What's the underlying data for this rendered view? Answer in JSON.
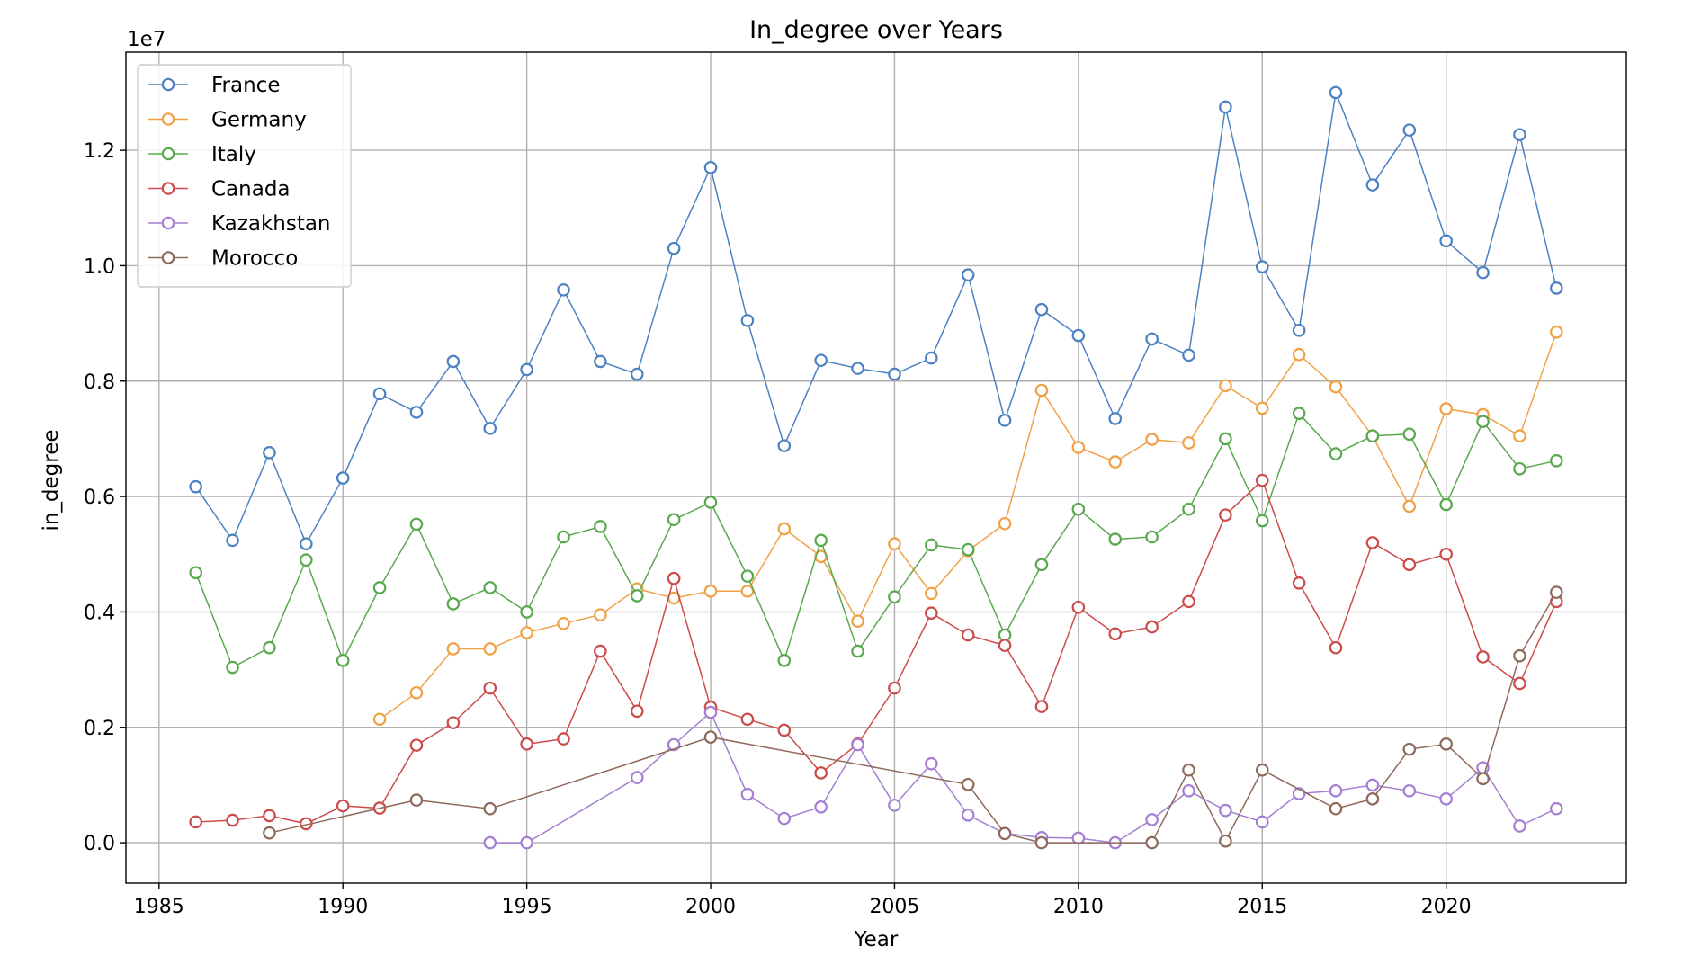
{
  "chart_data": {
    "type": "line",
    "title": "In_degree over Years",
    "xlabel": "Year",
    "ylabel": "in_degree",
    "y_multiplier_label": "1e7",
    "y_scale_factor": 10000000,
    "xlim": [
      1984.1,
      2024.9
    ],
    "ylim": [
      -0.07,
      1.37
    ],
    "x_ticks": [
      1985,
      1990,
      1995,
      2000,
      2005,
      2010,
      2015,
      2020
    ],
    "y_ticks": [
      0.0,
      0.2,
      0.4,
      0.6,
      0.8,
      1.0,
      1.2
    ],
    "y_tick_labels": [
      "0.0",
      "0.2",
      "0.4",
      "0.6",
      "0.8",
      "1.0",
      "1.2"
    ],
    "grid": true,
    "legend_position": "top-left",
    "series": [
      {
        "name": "France",
        "color": "#4c82c2",
        "x": [
          1986,
          1987,
          1988,
          1989,
          1990,
          1991,
          1992,
          1993,
          1994,
          1995,
          1996,
          1997,
          1998,
          1999,
          2000,
          2001,
          2002,
          2003,
          2004,
          2005,
          2006,
          2007,
          2008,
          2009,
          2010,
          2011,
          2012,
          2013,
          2014,
          2015,
          2016,
          2017,
          2018,
          2019,
          2020,
          2021,
          2022,
          2023
        ],
        "values": [
          0.617,
          0.524,
          0.676,
          0.518,
          0.632,
          0.778,
          0.746,
          0.834,
          0.718,
          0.82,
          0.958,
          0.834,
          0.812,
          1.03,
          1.17,
          0.905,
          0.688,
          0.836,
          0.822,
          0.812,
          0.84,
          0.984,
          0.732,
          0.924,
          0.879,
          0.735,
          0.873,
          0.845,
          1.275,
          0.998,
          0.888,
          1.3,
          1.14,
          1.235,
          1.043,
          0.988,
          1.227,
          0.961
        ]
      },
      {
        "name": "Germany",
        "color": "#f0a146",
        "x": [
          1991,
          1992,
          1993,
          1994,
          1995,
          1996,
          1997,
          1998,
          1999,
          2000,
          2001,
          2002,
          2003,
          2004,
          2005,
          2006,
          2007,
          2008,
          2009,
          2010,
          2011,
          2012,
          2013,
          2014,
          2015,
          2016,
          2017,
          2018,
          2019,
          2020,
          2021,
          2022,
          2023
        ],
        "values": [
          0.214,
          0.26,
          0.336,
          0.336,
          0.364,
          0.38,
          0.395,
          0.44,
          0.424,
          0.436,
          0.436,
          0.544,
          0.496,
          0.384,
          0.518,
          0.432,
          0.506,
          0.553,
          0.784,
          0.685,
          0.66,
          0.699,
          0.693,
          0.792,
          0.753,
          0.846,
          0.79,
          0.705,
          0.583,
          0.752,
          0.742,
          0.705,
          0.885
        ]
      },
      {
        "name": "Italy",
        "color": "#5aa84f",
        "x": [
          1986,
          1987,
          1988,
          1989,
          1990,
          1991,
          1992,
          1993,
          1994,
          1995,
          1996,
          1997,
          1998,
          1999,
          2000,
          2001,
          2002,
          2003,
          2004,
          2005,
          2006,
          2007,
          2008,
          2009,
          2010,
          2011,
          2012,
          2013,
          2014,
          2015,
          2016,
          2017,
          2018,
          2019,
          2020,
          2021,
          2022,
          2023
        ],
        "values": [
          0.468,
          0.304,
          0.338,
          0.49,
          0.316,
          0.442,
          0.552,
          0.414,
          0.442,
          0.4,
          0.53,
          0.548,
          0.428,
          0.56,
          0.59,
          0.462,
          0.316,
          0.524,
          0.332,
          0.426,
          0.516,
          0.508,
          0.36,
          0.482,
          0.578,
          0.526,
          0.53,
          0.578,
          0.7,
          0.558,
          0.744,
          0.674,
          0.705,
          0.708,
          0.586,
          0.73,
          0.648,
          0.662
        ]
      },
      {
        "name": "Canada",
        "color": "#cc4b4b",
        "x": [
          1986,
          1987,
          1988,
          1989,
          1990,
          1991,
          1992,
          1993,
          1994,
          1995,
          1996,
          1997,
          1998,
          1999,
          2000,
          2001,
          2002,
          2003,
          2004,
          2005,
          2006,
          2007,
          2008,
          2009,
          2010,
          2011,
          2012,
          2013,
          2014,
          2015,
          2016,
          2017,
          2018,
          2019,
          2020,
          2021,
          2022,
          2023
        ],
        "values": [
          0.036,
          0.039,
          0.047,
          0.033,
          0.064,
          0.06,
          0.169,
          0.208,
          0.268,
          0.171,
          0.18,
          0.332,
          0.228,
          0.458,
          0.235,
          0.214,
          0.195,
          0.121,
          0.171,
          0.268,
          0.398,
          0.36,
          0.342,
          0.236,
          0.408,
          0.362,
          0.374,
          0.418,
          0.568,
          0.628,
          0.45,
          0.338,
          0.52,
          0.482,
          0.5,
          0.322,
          0.276,
          0.418
        ]
      },
      {
        "name": "Kazakhstan",
        "color": "#a47fd2",
        "x": [
          1994,
          1995,
          1998,
          1999,
          2000,
          2001,
          2002,
          2003,
          2004,
          2005,
          2006,
          2007,
          2008,
          2009,
          2010,
          2011,
          2012,
          2013,
          2014,
          2015,
          2016,
          2017,
          2018,
          2019,
          2020,
          2021,
          2022,
          2023
        ],
        "values": [
          0.0,
          0.0,
          0.113,
          0.17,
          0.226,
          0.084,
          0.042,
          0.062,
          0.17,
          0.065,
          0.137,
          0.048,
          0.016,
          0.009,
          0.008,
          0.0,
          0.04,
          0.09,
          0.056,
          0.036,
          0.085,
          0.09,
          0.1,
          0.09,
          0.076,
          0.13,
          0.029,
          0.059
        ]
      },
      {
        "name": "Morocco",
        "color": "#8f6a5c",
        "x": [
          1988,
          1992,
          1994,
          2000,
          2007,
          2008,
          2009,
          2012,
          2013,
          2014,
          2015,
          2017,
          2018,
          2019,
          2020,
          2021,
          2022,
          2023
        ],
        "values": [
          0.017,
          0.074,
          0.059,
          0.183,
          0.101,
          0.016,
          0.0,
          0.0,
          0.126,
          0.003,
          0.126,
          0.059,
          0.076,
          0.162,
          0.171,
          0.111,
          0.324,
          0.434
        ]
      }
    ]
  }
}
